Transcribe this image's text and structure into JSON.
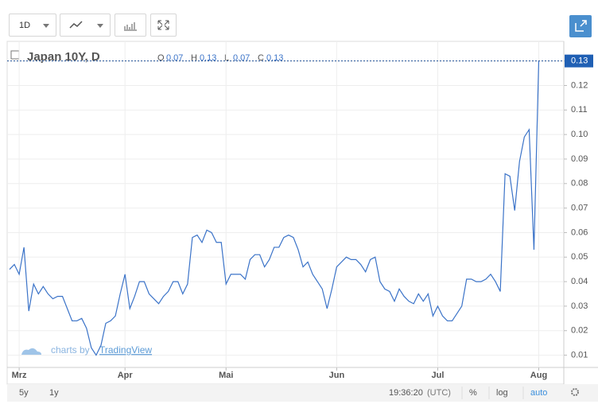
{
  "toolbar": {
    "interval": "1D"
  },
  "chart_data": {
    "type": "line",
    "title": "Japan 10Y, D",
    "ohlc": [
      {
        "label": "O",
        "value": 0.07
      },
      {
        "label": "H",
        "value": 0.13
      },
      {
        "label": "L",
        "value": 0.07
      },
      {
        "label": "C",
        "value": 0.13
      }
    ],
    "categories": [
      null,
      null,
      "Mrz",
      null,
      null,
      null,
      null,
      null,
      null,
      null,
      null,
      null,
      null,
      null,
      null,
      null,
      null,
      null,
      null,
      null,
      null,
      null,
      null,
      null,
      "Apr",
      null,
      null,
      null,
      null,
      null,
      null,
      null,
      null,
      null,
      null,
      null,
      null,
      null,
      null,
      null,
      null,
      null,
      null,
      null,
      null,
      "Mai",
      null,
      null,
      null,
      null,
      null,
      null,
      null,
      null,
      null,
      null,
      null,
      null,
      null,
      null,
      null,
      null,
      null,
      null,
      null,
      null,
      null,
      null,
      "Jun",
      null,
      null,
      null,
      null,
      null,
      null,
      null,
      null,
      null,
      null,
      null,
      null,
      null,
      null,
      null,
      null,
      null,
      null,
      null,
      null,
      "Jul",
      null,
      null,
      null,
      null,
      null,
      null,
      null,
      null,
      null,
      null,
      null,
      null,
      null,
      null,
      null,
      null,
      null,
      null,
      null,
      null,
      "Aug"
    ],
    "series": [
      {
        "name": "Japan 10Y",
        "color": "#3b73c8",
        "values": [
          0.045,
          0.047,
          0.043,
          0.054,
          0.028,
          0.039,
          0.035,
          0.038,
          0.035,
          0.033,
          0.034,
          0.034,
          0.029,
          0.024,
          0.024,
          0.025,
          0.021,
          0.013,
          0.01,
          0.014,
          0.023,
          0.024,
          0.026,
          0.035,
          0.043,
          0.029,
          0.034,
          0.04,
          0.04,
          0.035,
          0.033,
          0.031,
          0.034,
          0.036,
          0.04,
          0.04,
          0.035,
          0.039,
          0.058,
          0.059,
          0.056,
          0.061,
          0.06,
          0.056,
          0.056,
          0.039,
          0.043,
          0.043,
          0.043,
          0.041,
          0.049,
          0.051,
          0.051,
          0.046,
          0.049,
          0.054,
          0.054,
          0.058,
          0.059,
          0.058,
          0.053,
          0.046,
          0.048,
          0.043,
          0.04,
          0.037,
          0.029,
          0.037,
          0.046,
          0.048,
          0.05,
          0.049,
          0.049,
          0.047,
          0.044,
          0.049,
          0.05,
          0.04,
          0.037,
          0.036,
          0.032,
          0.037,
          0.034,
          0.032,
          0.031,
          0.035,
          0.032,
          0.035,
          0.026,
          0.03,
          0.026,
          0.024,
          0.024,
          0.027,
          0.03,
          0.041,
          0.041,
          0.04,
          0.04,
          0.041,
          0.043,
          0.04,
          0.036,
          0.084,
          0.083,
          0.069,
          0.089,
          0.099,
          0.102,
          0.053,
          0.13
        ]
      }
    ],
    "ylim": [
      0.005,
      0.138
    ],
    "yticks": [
      0.01,
      0.02,
      0.03,
      0.04,
      0.05,
      0.06,
      0.07,
      0.08,
      0.09,
      {
        "value": 0.1,
        "label": "0.10"
      },
      0.11,
      0.12,
      0.13
    ],
    "grid": true
  },
  "branding": {
    "prefix": "charts by",
    "brand": "TradingView"
  },
  "bottom_bar": {
    "ranges": [
      "5y",
      "1y"
    ],
    "time": "19:36:20",
    "timezone": "(UTC)",
    "options": [
      "%",
      "log",
      "auto"
    ]
  }
}
